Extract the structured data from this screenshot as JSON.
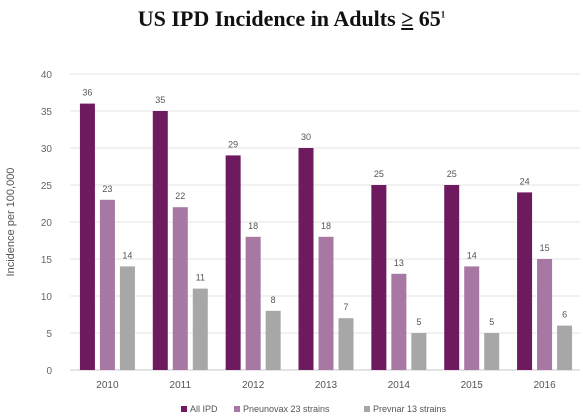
{
  "chart_data": {
    "type": "bar",
    "title_text": "US IPD Incidence in Adults",
    "title_symbol": "≥",
    "title_number": "65",
    "title_footnote": "1",
    "ylabel": "Incidence per 100,000",
    "xlabel": "",
    "ylim": [
      0,
      40
    ],
    "yticks": [
      "0",
      "5",
      "10",
      "15",
      "20",
      "25",
      "30",
      "35",
      "40"
    ],
    "categories": [
      "2010",
      "2011",
      "2012",
      "2013",
      "2014",
      "2015",
      "2016"
    ],
    "series": [
      {
        "name": "All IPD",
        "color": "#6e1a5f",
        "values": [
          36,
          35,
          29,
          30,
          25,
          25,
          24
        ]
      },
      {
        "name": "Pneunovax 23 strains",
        "color": "#a878a4",
        "values": [
          23,
          22,
          18,
          18,
          13,
          14,
          15
        ]
      },
      {
        "name": "Prevnar 13 strains",
        "color": "#a7a7a7",
        "values": [
          14,
          11,
          8,
          7,
          5,
          5,
          6
        ]
      }
    ],
    "grid": true,
    "legend": "bottom"
  }
}
